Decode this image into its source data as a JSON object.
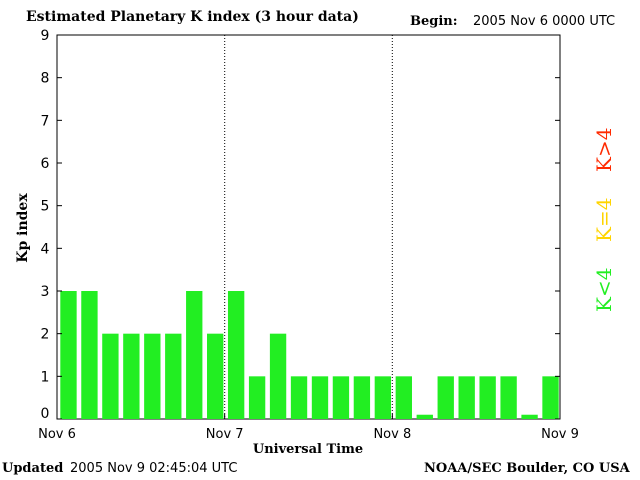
{
  "header": {
    "title": "Estimated Planetary K index (3 hour data)",
    "begin_label": "Begin:",
    "begin_value": "2005 Nov 6 0000 UTC"
  },
  "footer": {
    "updated_label": "Updated",
    "updated_value": "2005 Nov  9 02:45:04 UTC",
    "credit": "NOAA/SEC Boulder, CO USA"
  },
  "legend": [
    {
      "label": "K>4",
      "color": "#ff2a00"
    },
    {
      "label": "K=4",
      "color": "#ffd400"
    },
    {
      "label": "K<4",
      "color": "#22ee22"
    }
  ],
  "chart_data": {
    "type": "bar",
    "title": "Estimated Planetary K index (3 hour data)",
    "xlabel": "Universal Time",
    "ylabel": "Kp index",
    "ylim": [
      0,
      9
    ],
    "yticks": [
      "0",
      "1",
      "2",
      "3",
      "4",
      "5",
      "6",
      "7",
      "8",
      "9"
    ],
    "xtick_labels": [
      "Nov 6",
      "Nov 7",
      "Nov 8",
      "Nov 9"
    ],
    "bar_color": "#22ee22",
    "values": [
      3,
      3,
      2,
      2,
      2,
      2,
      3,
      2,
      3,
      1,
      2,
      1,
      1,
      1,
      1,
      1,
      1,
      0.1,
      1,
      1,
      1,
      1,
      0.1,
      1
    ]
  }
}
